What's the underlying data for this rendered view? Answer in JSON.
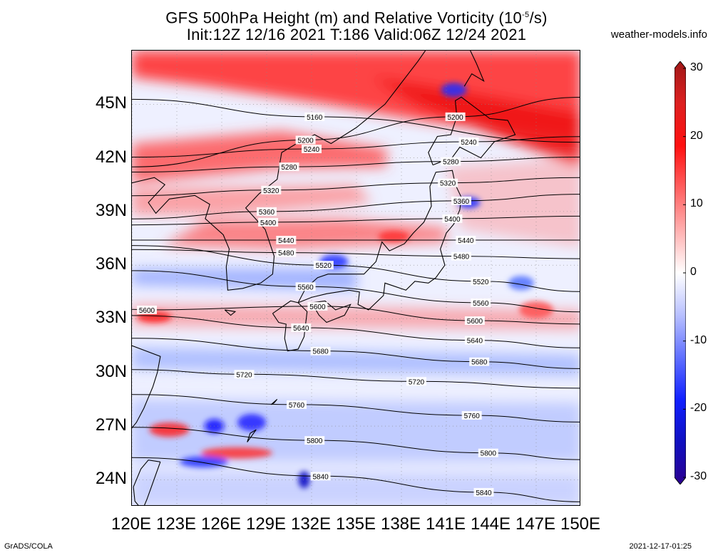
{
  "title": {
    "line1_pre": "GFS 500hPa Height (m) and Relative Vorticity (10",
    "line1_sup": "-5",
    "line1_post": "/s)",
    "line2": "Init:12Z 12/16 2021 T:186 Valid:06Z 12/24 2021"
  },
  "credit": "weather-models.info",
  "footer": {
    "left": "GrADS/COLA",
    "right": "2021-12-17-01:25"
  },
  "map": {
    "lat_range": [
      22.5,
      48.0
    ],
    "lon_range": [
      120,
      150
    ],
    "lat_labels": [
      "45N",
      "42N",
      "39N",
      "36N",
      "33N",
      "30N",
      "27N",
      "24N"
    ],
    "lat_values": [
      45,
      42,
      39,
      36,
      33,
      30,
      27,
      24
    ],
    "lon_labels": [
      "120E",
      "123E",
      "126E",
      "129E",
      "132E",
      "135E",
      "138E",
      "141E",
      "144E",
      "147E",
      "150E"
    ],
    "lon_values": [
      120,
      123,
      126,
      129,
      132,
      135,
      138,
      141,
      144,
      147,
      150
    ],
    "contour_levels": [
      "5160",
      "5200",
      "5240",
      "5280",
      "5320",
      "5360",
      "5400",
      "5440",
      "5480",
      "5520",
      "5560",
      "5600",
      "5640",
      "5680",
      "5720",
      "5760",
      "5800",
      "5840"
    ],
    "contour_labels": [
      {
        "text": "5160",
        "lon": 132.2,
        "lat": 44.3
      },
      {
        "text": "5200",
        "lon": 131.6,
        "lat": 43.0
      },
      {
        "text": "5200",
        "lon": 141.6,
        "lat": 44.3
      },
      {
        "text": "5240",
        "lon": 132.0,
        "lat": 42.5
      },
      {
        "text": "5240",
        "lon": 142.5,
        "lat": 42.9
      },
      {
        "text": "5280",
        "lon": 130.5,
        "lat": 41.5
      },
      {
        "text": "5280",
        "lon": 141.3,
        "lat": 41.8
      },
      {
        "text": "5320",
        "lon": 129.3,
        "lat": 40.2
      },
      {
        "text": "5320",
        "lon": 141.1,
        "lat": 40.6
      },
      {
        "text": "5360",
        "lon": 129.0,
        "lat": 39.0
      },
      {
        "text": "5360",
        "lon": 142.0,
        "lat": 39.6
      },
      {
        "text": "5400",
        "lon": 129.1,
        "lat": 38.4
      },
      {
        "text": "5400",
        "lon": 141.4,
        "lat": 38.6
      },
      {
        "text": "5440",
        "lon": 130.3,
        "lat": 37.4
      },
      {
        "text": "5440",
        "lon": 142.3,
        "lat": 37.4
      },
      {
        "text": "5480",
        "lon": 130.3,
        "lat": 36.7
      },
      {
        "text": "5480",
        "lon": 142.0,
        "lat": 36.5
      },
      {
        "text": "5520",
        "lon": 132.8,
        "lat": 36.0
      },
      {
        "text": "5520",
        "lon": 143.3,
        "lat": 35.1
      },
      {
        "text": "5560",
        "lon": 131.6,
        "lat": 34.8
      },
      {
        "text": "5560",
        "lon": 143.3,
        "lat": 33.9
      },
      {
        "text": "5600",
        "lon": 121.0,
        "lat": 33.5
      },
      {
        "text": "5600",
        "lon": 132.4,
        "lat": 33.7
      },
      {
        "text": "5600",
        "lon": 142.9,
        "lat": 32.9
      },
      {
        "text": "5640",
        "lon": 131.3,
        "lat": 32.5
      },
      {
        "text": "5640",
        "lon": 142.9,
        "lat": 31.8
      },
      {
        "text": "5680",
        "lon": 132.6,
        "lat": 31.2
      },
      {
        "text": "5680",
        "lon": 143.2,
        "lat": 30.6
      },
      {
        "text": "5720",
        "lon": 127.5,
        "lat": 29.9
      },
      {
        "text": "5720",
        "lon": 139.0,
        "lat": 29.5
      },
      {
        "text": "5760",
        "lon": 131.0,
        "lat": 28.2
      },
      {
        "text": "5760",
        "lon": 142.7,
        "lat": 27.6
      },
      {
        "text": "5800",
        "lon": 132.2,
        "lat": 26.2
      },
      {
        "text": "5800",
        "lon": 143.8,
        "lat": 25.5
      },
      {
        "text": "5840",
        "lon": 132.6,
        "lat": 24.2
      },
      {
        "text": "5840",
        "lon": 143.5,
        "lat": 23.3
      }
    ],
    "colors": {
      "positive": "#ff0000",
      "negative": "#0000ff",
      "neutral": "#f3f3ff",
      "contour": "#000000",
      "coast": "#000000"
    }
  },
  "colorbar": {
    "labels": [
      "30",
      "20",
      "10",
      "0",
      "-10",
      "-20",
      "-30"
    ],
    "values": [
      30,
      20,
      10,
      0,
      -10,
      -20,
      -30
    ],
    "range": [
      -30,
      30
    ],
    "colors_top_to_bottom": [
      "#a01818",
      "#dd2020",
      "#ff1010",
      "#ff6060",
      "#ffb0b0",
      "#ffffff",
      "#b8c0ff",
      "#6070ff",
      "#1020ff",
      "#1010c0",
      "#2c0090"
    ]
  }
}
